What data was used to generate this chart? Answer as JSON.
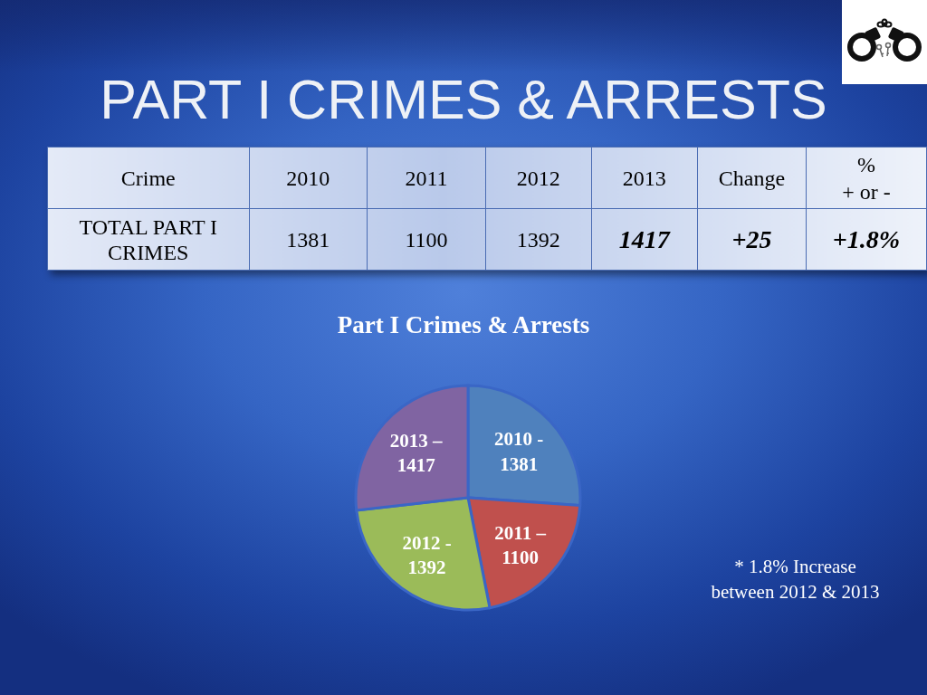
{
  "chart_data": {
    "type": "pie",
    "title": "PART I CRIMES & ARRESTS",
    "subtitle": "Part I Crimes & Arrests",
    "categories": [
      "2010 -",
      "2011 –",
      "2012 -",
      "2013 –"
    ],
    "values": [
      1381,
      1100,
      1392,
      1417
    ],
    "colors": [
      "#4f81bd",
      "#c0504d",
      "#9bbb59",
      "#8064a2"
    ],
    "data_labels": true,
    "annotations": [
      "Crime",
      "2010",
      "2011",
      "2012",
      "2013",
      "Change",
      "%\n+ or -",
      "TOTAL PART I CRIMES",
      "1381",
      "1100",
      "1392",
      "1417",
      "+25",
      "+1.8%",
      "* 1.8% Increase between 2012 & 2013"
    ]
  }
}
